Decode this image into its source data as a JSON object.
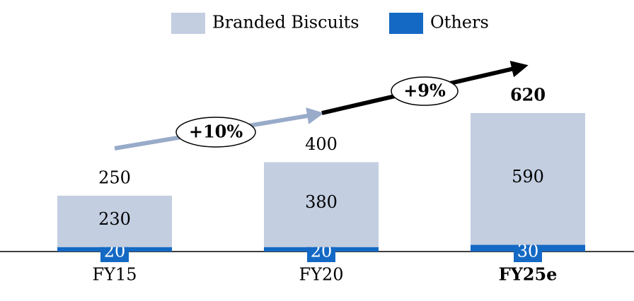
{
  "chart_data": {
    "type": "stacked_bar",
    "categories": [
      "FY15",
      "FY20",
      "FY25e"
    ],
    "series": [
      {
        "name": "Branded Biscuits",
        "color": "#c3cee1",
        "values": [
          230,
          380,
          590
        ]
      },
      {
        "name": "Others",
        "color": "#1469c4",
        "values": [
          20,
          20,
          30
        ]
      }
    ],
    "totals": [
      250,
      400,
      620
    ],
    "annotations": [
      "+10%",
      "+9%"
    ]
  }
}
